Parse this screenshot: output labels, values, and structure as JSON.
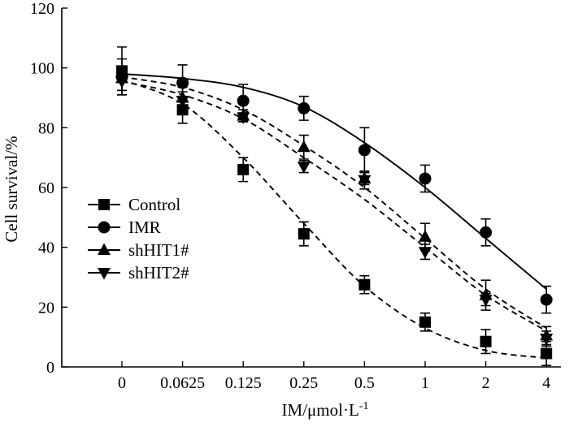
{
  "chart_data": {
    "type": "scatter",
    "title": "",
    "xlabel": "IM/μmol·L",
    "xlabel_superscript": "-1",
    "ylabel": "Cell survival/%",
    "categories": [
      "0",
      "0.0625",
      "0.125",
      "0.25",
      "0.5",
      "1",
      "2",
      "4"
    ],
    "ylim": [
      0,
      120
    ],
    "yticks": [
      0,
      20,
      40,
      60,
      80,
      100,
      120
    ],
    "grid": false,
    "legend": "center-left",
    "series": [
      {
        "name": "Control",
        "marker": "square",
        "line": "dashed",
        "values": [
          99,
          86,
          66,
          44.5,
          27.5,
          15,
          8.5,
          4.5
        ],
        "errors": [
          8,
          4.5,
          4,
          4,
          3,
          3,
          4,
          4
        ],
        "fit": [
          96,
          88,
          70,
          48,
          27,
          13,
          5.5,
          3
        ]
      },
      {
        "name": "IMR",
        "marker": "circle",
        "line": "solid",
        "values": [
          97,
          95,
          89,
          86.5,
          72.5,
          63,
          45,
          22.5
        ],
        "errors": [
          6,
          6,
          5.5,
          4,
          7.5,
          4.5,
          4.5,
          4.5
        ],
        "fit": [
          98,
          96.5,
          93.5,
          87,
          75,
          60,
          43,
          26
        ]
      },
      {
        "name": "shHIT1#",
        "marker": "triangle-up",
        "line": "dashed",
        "values": [
          96.5,
          90,
          84,
          73.5,
          63,
          43.5,
          24,
          10.5
        ],
        "errors": [
          4,
          3.5,
          2,
          4,
          2,
          4.5,
          5,
          3
        ],
        "fit": [
          97,
          93.5,
          86,
          74,
          60,
          43,
          26,
          13
        ]
      },
      {
        "name": "shHIT2#",
        "marker": "triangle-down",
        "line": "dashed",
        "values": [
          95.5,
          89,
          83.5,
          67,
          62.5,
          38.5,
          22.5,
          9.5
        ],
        "errors": [
          3,
          3,
          1.5,
          2,
          3,
          2.5,
          2,
          2.5
        ],
        "fit": [
          95.5,
          91,
          83,
          70,
          56,
          40,
          24,
          12
        ]
      }
    ]
  }
}
